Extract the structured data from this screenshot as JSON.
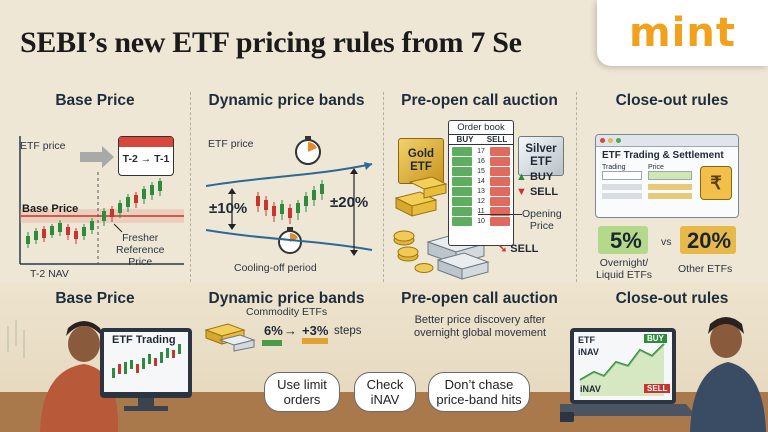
{
  "title": "SEBI’s new ETF pricing rules from 7 Se",
  "logo": "mint",
  "panels": {
    "base_price": {
      "heading": "Base Price",
      "etf_price_label": "ETF price",
      "calendar_text": "T-2 → T-1",
      "base_price_label": "Base Price",
      "reference_label": "Fresher\nReference\nPrice",
      "nav_label": "T-2 NAV",
      "bottom_heading": "Base Price"
    },
    "price_bands": {
      "heading": "Dynamic price bands",
      "etf_price_label": "ETF price",
      "band_10": "±10%",
      "band_20": "±20%",
      "cooling_label": "Cooling-off period",
      "bottom_heading": "Dynamic price bands",
      "commodity_label": "Commodity ETFs",
      "step_from": "6%",
      "step_to": "+3%",
      "steps_word": "steps"
    },
    "call_auction": {
      "heading": "Pre-open call auction",
      "order_book_title": "Order book",
      "buy_col": "BUY",
      "sell_col": "SELL",
      "gold_label": "Gold\nETF",
      "silver_label": "Silver\nETF",
      "buy_tag": "BUY",
      "sell_tag": "SELL",
      "sell_tag_bottom": "SELL",
      "opening_price_label": "Opening\nPrice",
      "order_rows": [
        "17",
        "16",
        "15",
        "14",
        "13",
        "12",
        "11",
        "10"
      ],
      "bottom_heading": "Pre-open call auction",
      "discovery_text": "Better price discovery after\novernight global movement"
    },
    "closeout": {
      "heading": "Close-out rules",
      "window_title": "ETF Trading & Settlement",
      "field_trading": "Trading",
      "field_price": "Price",
      "pct_liquid": "5%",
      "pct_liquid_label": "Overnight/\nLiquid ETFs",
      "vs": "vs",
      "pct_other": "20%",
      "pct_other_label": "Other ETFs",
      "bottom_heading": "Close-out rules"
    }
  },
  "screens": {
    "left_monitor_title": "ETF Trading",
    "laptop_etf": "ETF",
    "laptop_inav": "iNAV",
    "laptop_buy": "BUY",
    "laptop_sell": "SELL",
    "laptop_inav_bottom": "iNAV"
  },
  "tips": [
    "Use limit\norders",
    "Check\niNAV",
    "Don’t chase\nprice-band hits"
  ],
  "colors": {
    "background": "#efe7d6",
    "logo_orange": "#f2a11d",
    "buy_green": "#2e8b3e",
    "sell_red": "#c8352e",
    "base_line": "#c0392b",
    "highlight_green": "#b5d98a",
    "highlight_gold": "#e7b84a"
  }
}
